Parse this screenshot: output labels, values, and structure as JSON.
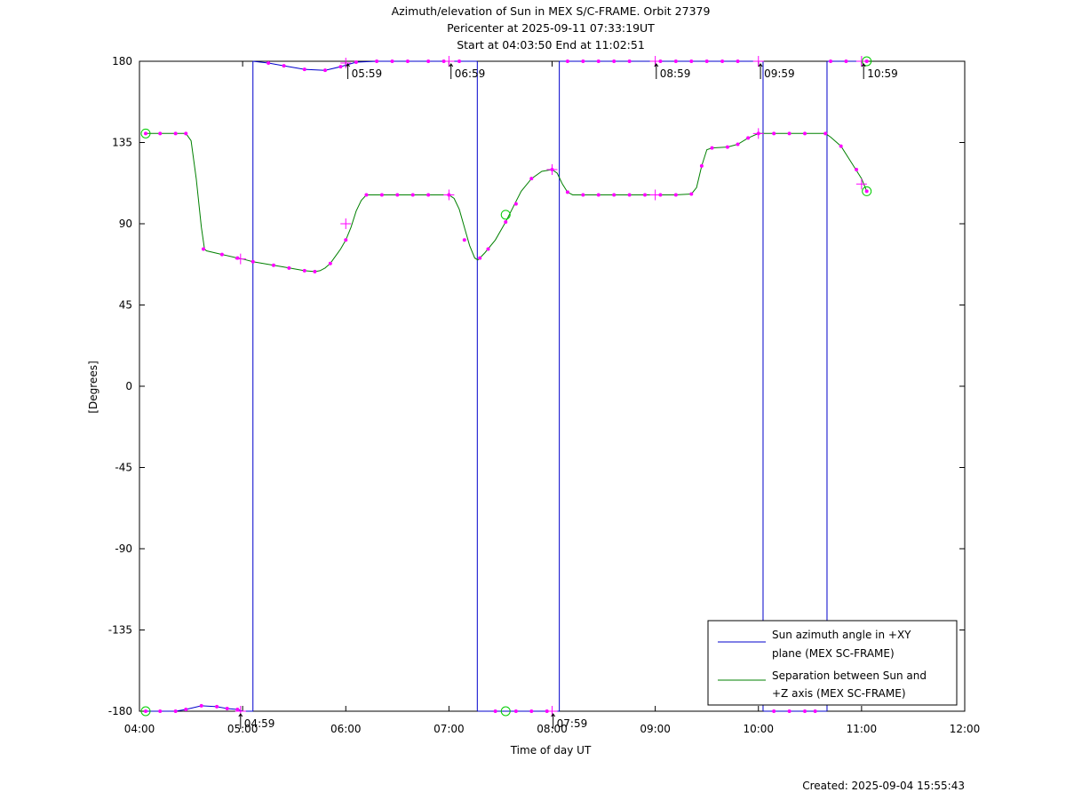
{
  "chart_data": {
    "type": "line",
    "title_lines": [
      "Azimuth/elevation of Sun in MEX S/C-FRAME.  Orbit 27379",
      "Pericenter at 2025-09-11 07:33:19UT",
      "Start at 04:03:50 End at 11:02:51"
    ],
    "xlabel": "Time of day UT",
    "ylabel": "[Degrees]",
    "footer": "Created: 2025-09-04 15:55:43",
    "xlim": [
      4.0,
      12.0
    ],
    "ylim": [
      -180,
      180
    ],
    "x_ticks": [
      4,
      5,
      6,
      7,
      8,
      9,
      10,
      11,
      12
    ],
    "x_tick_labels": [
      "04:00",
      "05:00",
      "06:00",
      "07:00",
      "08:00",
      "09:00",
      "10:00",
      "11:00",
      "12:00"
    ],
    "y_ticks": [
      180,
      135,
      90,
      45,
      0,
      -45,
      -90,
      -135,
      -180
    ],
    "y_tick_labels": [
      "180",
      "135",
      "90",
      "45",
      "0",
      "-45",
      "-90",
      "-135",
      "-180"
    ],
    "grid": false,
    "legend_position": "bottom-right",
    "colors": {
      "azimuth": "#0000cc",
      "separation": "#008000",
      "markers": "#ff00ff",
      "circles": "#00cc00"
    },
    "series": [
      {
        "name": "Sun azimuth angle in +XY plane (MEX SC-FRAME)",
        "legend_lines": [
          "Sun azimuth angle in +XY",
          "plane (MEX SC-FRAME)"
        ],
        "color": "#0000cc",
        "segments": [
          [
            [
              4.06,
              -180
            ],
            [
              4.2,
              -180
            ],
            [
              4.35,
              -180
            ],
            [
              4.45,
              -179
            ],
            [
              4.6,
              -177
            ],
            [
              4.75,
              -177.5
            ],
            [
              4.85,
              -178.5
            ],
            [
              4.95,
              -179
            ],
            [
              5.0,
              -180
            ],
            [
              5.09,
              -180
            ],
            [
              5.1,
              -180
            ]
          ],
          [
            [
              5.1,
              180
            ],
            [
              5.25,
              179
            ],
            [
              5.4,
              177.5
            ],
            [
              5.6,
              175.5
            ],
            [
              5.8,
              175
            ],
            [
              5.95,
              177
            ],
            [
              6.1,
              179.5
            ],
            [
              6.3,
              180
            ],
            [
              7.25,
              180
            ],
            [
              7.27,
              180
            ]
          ],
          [
            [
              7.28,
              -180
            ],
            [
              7.5,
              -180
            ],
            [
              7.8,
              -180
            ],
            [
              8.05,
              -180
            ],
            [
              8.07,
              -180
            ]
          ],
          [
            [
              8.07,
              180
            ],
            [
              9.0,
              180
            ],
            [
              10.02,
              180
            ],
            [
              10.04,
              180
            ]
          ],
          [
            [
              10.05,
              -180
            ],
            [
              10.3,
              -180
            ],
            [
              10.63,
              -180
            ],
            [
              10.66,
              -180
            ]
          ],
          [
            [
              10.67,
              180
            ],
            [
              10.9,
              180
            ],
            [
              11.05,
              180
            ]
          ]
        ],
        "jumps": [
          5.1,
          7.275,
          8.07,
          10.045,
          10.665
        ]
      },
      {
        "name": "Separation between Sun and +Z axis (MEX SC-FRAME)",
        "legend_lines": [
          "Separation between Sun and",
          "+Z axis (MEX SC-FRAME)"
        ],
        "color": "#008000",
        "points": [
          [
            4.06,
            140
          ],
          [
            4.2,
            140
          ],
          [
            4.35,
            140
          ],
          [
            4.45,
            140
          ],
          [
            4.5,
            136
          ],
          [
            4.55,
            115
          ],
          [
            4.6,
            88
          ],
          [
            4.63,
            76
          ],
          [
            4.65,
            75
          ],
          [
            4.8,
            73
          ],
          [
            4.95,
            71
          ],
          [
            5.0,
            70.5
          ],
          [
            5.1,
            69
          ],
          [
            5.3,
            67
          ],
          [
            5.45,
            65.5
          ],
          [
            5.6,
            64
          ],
          [
            5.7,
            63.5
          ],
          [
            5.75,
            64
          ],
          [
            5.8,
            65.5
          ],
          [
            5.85,
            68
          ],
          [
            5.95,
            76
          ],
          [
            6.0,
            81
          ],
          [
            6.05,
            88
          ],
          [
            6.1,
            97
          ],
          [
            6.15,
            103
          ],
          [
            6.2,
            106
          ],
          [
            6.3,
            106
          ],
          [
            6.5,
            106
          ],
          [
            6.7,
            106
          ],
          [
            6.9,
            106
          ],
          [
            7.0,
            106
          ],
          [
            7.05,
            104
          ],
          [
            7.1,
            98
          ],
          [
            7.15,
            88
          ],
          [
            7.2,
            78
          ],
          [
            7.25,
            71
          ],
          [
            7.28,
            70
          ],
          [
            7.3,
            71
          ],
          [
            7.35,
            74
          ],
          [
            7.45,
            81
          ],
          [
            7.55,
            91
          ],
          [
            7.62,
            99
          ],
          [
            7.7,
            108
          ],
          [
            7.8,
            115
          ],
          [
            7.9,
            119
          ],
          [
            8.0,
            120
          ],
          [
            8.05,
            118
          ],
          [
            8.1,
            112
          ],
          [
            8.15,
            107.5
          ],
          [
            8.2,
            106
          ],
          [
            8.4,
            106
          ],
          [
            8.6,
            106
          ],
          [
            8.8,
            106
          ],
          [
            9.0,
            106
          ],
          [
            9.2,
            106
          ],
          [
            9.35,
            106.5
          ],
          [
            9.4,
            110
          ],
          [
            9.45,
            122
          ],
          [
            9.5,
            131
          ],
          [
            9.55,
            132
          ],
          [
            9.7,
            132.5
          ],
          [
            9.8,
            134
          ],
          [
            9.9,
            137.5
          ],
          [
            10.0,
            140
          ],
          [
            10.1,
            140
          ],
          [
            10.3,
            140
          ],
          [
            10.5,
            140
          ],
          [
            10.65,
            140
          ],
          [
            10.7,
            138
          ],
          [
            10.8,
            133
          ],
          [
            10.9,
            124
          ],
          [
            11.0,
            115
          ],
          [
            11.05,
            108
          ]
        ]
      }
    ],
    "magenta_dots": [
      [
        4.06,
        140
      ],
      [
        4.2,
        140
      ],
      [
        4.35,
        140
      ],
      [
        4.45,
        140
      ],
      [
        4.62,
        76
      ],
      [
        4.8,
        73
      ],
      [
        4.95,
        71
      ],
      [
        5.1,
        69
      ],
      [
        5.3,
        67
      ],
      [
        5.45,
        65.5
      ],
      [
        5.6,
        64
      ],
      [
        5.7,
        63.5
      ],
      [
        5.85,
        68
      ],
      [
        6.0,
        81
      ],
      [
        6.2,
        106
      ],
      [
        6.35,
        106
      ],
      [
        6.5,
        106
      ],
      [
        6.65,
        106
      ],
      [
        6.8,
        106
      ],
      [
        7.0,
        106
      ],
      [
        7.15,
        81
      ],
      [
        7.3,
        71
      ],
      [
        7.38,
        76
      ],
      [
        7.55,
        91
      ],
      [
        7.65,
        101
      ],
      [
        7.8,
        115
      ],
      [
        8.0,
        120
      ],
      [
        8.15,
        107.5
      ],
      [
        8.3,
        106
      ],
      [
        8.45,
        106
      ],
      [
        8.6,
        106
      ],
      [
        8.75,
        106
      ],
      [
        8.9,
        106
      ],
      [
        9.05,
        106
      ],
      [
        9.2,
        106
      ],
      [
        9.35,
        106.5
      ],
      [
        9.45,
        122
      ],
      [
        9.55,
        132
      ],
      [
        9.7,
        132.5
      ],
      [
        9.8,
        134
      ],
      [
        9.9,
        137.5
      ],
      [
        10.0,
        140
      ],
      [
        10.15,
        140
      ],
      [
        10.3,
        140
      ],
      [
        10.45,
        140
      ],
      [
        10.65,
        140
      ],
      [
        10.8,
        133
      ],
      [
        10.95,
        120
      ],
      [
        11.05,
        108
      ],
      [
        4.06,
        -180
      ],
      [
        4.2,
        -180
      ],
      [
        4.35,
        -180
      ],
      [
        4.45,
        -179
      ],
      [
        4.6,
        -177
      ],
      [
        4.75,
        -177.5
      ],
      [
        4.85,
        -178.5
      ],
      [
        4.95,
        -179
      ],
      [
        5.25,
        179
      ],
      [
        5.4,
        177.5
      ],
      [
        5.6,
        175.5
      ],
      [
        5.8,
        175
      ],
      [
        5.95,
        177
      ],
      [
        6.1,
        179.5
      ],
      [
        6.3,
        180
      ],
      [
        6.45,
        180
      ],
      [
        6.6,
        180
      ],
      [
        6.8,
        180
      ],
      [
        6.95,
        180
      ],
      [
        7.1,
        180
      ],
      [
        7.45,
        -180
      ],
      [
        7.65,
        -180
      ],
      [
        7.8,
        -180
      ],
      [
        7.95,
        -180
      ],
      [
        8.15,
        180
      ],
      [
        8.3,
        180
      ],
      [
        8.45,
        180
      ],
      [
        8.6,
        180
      ],
      [
        8.75,
        180
      ],
      [
        9.05,
        180
      ],
      [
        9.2,
        180
      ],
      [
        9.35,
        180
      ],
      [
        9.5,
        180
      ],
      [
        9.65,
        180
      ],
      [
        9.8,
        180
      ],
      [
        10.15,
        -180
      ],
      [
        10.3,
        -180
      ],
      [
        10.45,
        -180
      ],
      [
        10.55,
        -180
      ],
      [
        10.7,
        180
      ],
      [
        10.85,
        180
      ],
      [
        11.05,
        180
      ]
    ],
    "cross_markers": [
      [
        4.98,
        70.5
      ],
      [
        4.98,
        -180
      ],
      [
        6.0,
        90
      ],
      [
        7.0,
        106
      ],
      [
        7.0,
        180
      ],
      [
        8.0,
        120
      ],
      [
        8.0,
        -180
      ],
      [
        9.0,
        106
      ],
      [
        9.0,
        180
      ],
      [
        10.0,
        140
      ],
      [
        10.0,
        180
      ],
      [
        11.0,
        112
      ],
      [
        11.0,
        180
      ],
      [
        6.0,
        179
      ]
    ],
    "circle_markers": [
      [
        4.06,
        140
      ],
      [
        4.06,
        -180
      ],
      [
        7.55,
        95
      ],
      [
        7.55,
        -180
      ],
      [
        11.05,
        108
      ],
      [
        11.05,
        180
      ]
    ],
    "hour_marks": [
      {
        "label": "04:59",
        "x": 4.98,
        "y": -180,
        "side": "below"
      },
      {
        "label": "05:59",
        "x": 6.02,
        "y": 180,
        "side": "below"
      },
      {
        "label": "06:59",
        "x": 7.02,
        "y": 180,
        "side": "below"
      },
      {
        "label": "07:59",
        "x": 8.01,
        "y": -180,
        "side": "below"
      },
      {
        "label": "08:59",
        "x": 9.01,
        "y": 180,
        "side": "below"
      },
      {
        "label": "09:59",
        "x": 10.02,
        "y": 180,
        "side": "below"
      },
      {
        "label": "10:59",
        "x": 11.02,
        "y": 180,
        "side": "below"
      }
    ]
  }
}
